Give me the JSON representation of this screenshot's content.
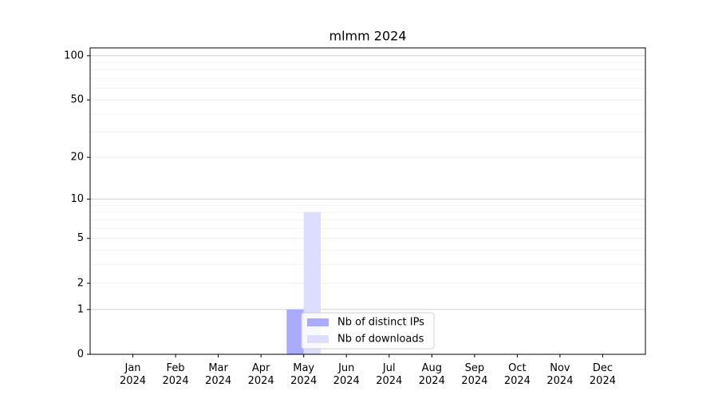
{
  "chart_data": {
    "type": "bar",
    "title": "mlmm 2024",
    "categories": [
      "Jan 2024",
      "Feb 2024",
      "Mar 2024",
      "Apr 2024",
      "May 2024",
      "Jun 2024",
      "Jul 2024",
      "Aug 2024",
      "Sep 2024",
      "Oct 2024",
      "Nov 2024",
      "Dec 2024"
    ],
    "series": [
      {
        "name": "Nb of distinct IPs",
        "color": "#aaaaff",
        "values": [
          0,
          0,
          0,
          0,
          1,
          0,
          0,
          0,
          0,
          0,
          0,
          0
        ]
      },
      {
        "name": "Nb of downloads",
        "color": "#ddddff",
        "values": [
          0,
          0,
          0,
          0,
          8,
          0,
          0,
          0,
          0,
          0,
          0,
          0
        ]
      }
    ],
    "yscale": "log1p",
    "ylim": [
      0,
      113
    ],
    "yticks": [
      0,
      1,
      2,
      5,
      10,
      20,
      50,
      100
    ],
    "yminorticks": [
      3,
      4,
      6,
      7,
      8,
      9,
      30,
      40,
      60,
      70,
      80,
      90
    ],
    "grid": true,
    "legend": "lower center"
  }
}
